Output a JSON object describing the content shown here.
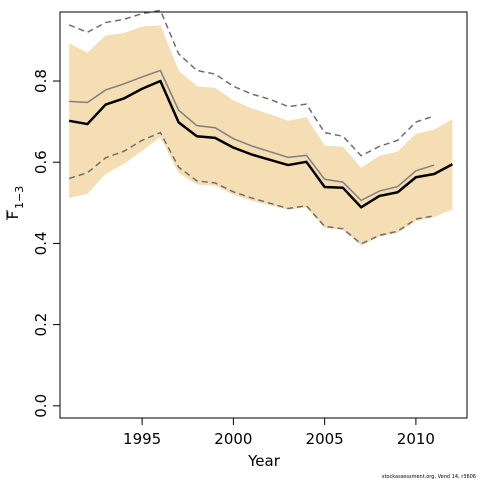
{
  "chart_data": {
    "type": "line",
    "xlabel": "Year",
    "ylabel_main": "F",
    "ylabel_sub": "1−3",
    "xlim": [
      1990.5,
      2012.8
    ],
    "ylim": [
      -0.03,
      0.97
    ],
    "xticks": [
      1995,
      2000,
      2005,
      2010
    ],
    "xtick_labels": [
      "1995",
      "2000",
      "2005",
      "2010"
    ],
    "yticks": [
      0.0,
      0.2,
      0.4,
      0.6,
      0.8
    ],
    "ytick_labels": [
      "0.0",
      "0.2",
      "0.4",
      "0.6",
      "0.8"
    ],
    "grid": false,
    "colors": {
      "band": "#f5deb3",
      "main_line": "#000000",
      "prev_line": "#808080",
      "prev_bounds": "#6e6e6e"
    },
    "series": [
      {
        "role": "band",
        "x": [
          1991,
          1992,
          1993,
          1994,
          1995,
          1996,
          1997,
          1998,
          1999,
          2000,
          2001,
          2002,
          2003,
          2004,
          2005,
          2006,
          2007,
          2008,
          2009,
          2010,
          2011,
          2012
        ],
        "lower": [
          0.512,
          0.522,
          0.571,
          0.596,
          0.628,
          0.662,
          0.573,
          0.545,
          0.542,
          0.52,
          0.505,
          0.494,
          0.483,
          0.489,
          0.438,
          0.434,
          0.395,
          0.417,
          0.426,
          0.455,
          0.465,
          0.484
        ],
        "upper": [
          0.893,
          0.87,
          0.912,
          0.918,
          0.934,
          0.937,
          0.826,
          0.787,
          0.783,
          0.752,
          0.733,
          0.718,
          0.702,
          0.711,
          0.641,
          0.638,
          0.586,
          0.616,
          0.626,
          0.67,
          0.68,
          0.706
        ]
      },
      {
        "role": "main",
        "x": [
          1991,
          1992,
          1993,
          1994,
          1995,
          1996,
          1997,
          1998,
          1999,
          2000,
          2001,
          2002,
          2003,
          2004,
          2005,
          2006,
          2007,
          2008,
          2009,
          2010,
          2011,
          2012
        ],
        "values": [
          0.702,
          0.694,
          0.742,
          0.757,
          0.781,
          0.8,
          0.698,
          0.664,
          0.66,
          0.636,
          0.619,
          0.606,
          0.593,
          0.601,
          0.539,
          0.537,
          0.489,
          0.517,
          0.526,
          0.563,
          0.571,
          0.595
        ]
      },
      {
        "role": "previous",
        "x": [
          1991,
          1992,
          1993,
          1994,
          1995,
          1996,
          1997,
          1998,
          1999,
          2000,
          2001,
          2002,
          2003,
          2004,
          2005,
          2006,
          2007,
          2008,
          2009,
          2010,
          2011
        ],
        "values": [
          0.75,
          0.747,
          0.778,
          0.793,
          0.81,
          0.826,
          0.728,
          0.69,
          0.685,
          0.658,
          0.64,
          0.626,
          0.612,
          0.617,
          0.558,
          0.551,
          0.506,
          0.529,
          0.54,
          0.579,
          0.593
        ]
      },
      {
        "role": "previous_upper",
        "x": [
          1991,
          1992,
          1993,
          1994,
          1995,
          1996,
          1997,
          1998,
          1999,
          2000,
          2001,
          2002,
          2003,
          2004,
          2005,
          2006,
          2007,
          2008,
          2009,
          2010,
          2011
        ],
        "values": [
          0.938,
          0.92,
          0.944,
          0.952,
          0.966,
          0.974,
          0.867,
          0.826,
          0.817,
          0.787,
          0.768,
          0.755,
          0.737,
          0.743,
          0.673,
          0.664,
          0.616,
          0.639,
          0.654,
          0.699,
          0.714
        ]
      },
      {
        "role": "previous_lower",
        "x": [
          1991,
          1992,
          1993,
          1994,
          1995,
          1996,
          1997,
          1998,
          1999,
          2000,
          2001,
          2002,
          2003,
          2004,
          2005,
          2006,
          2007,
          2008,
          2009,
          2010,
          2011
        ],
        "values": [
          0.56,
          0.574,
          0.611,
          0.627,
          0.654,
          0.673,
          0.588,
          0.554,
          0.549,
          0.527,
          0.512,
          0.499,
          0.486,
          0.493,
          0.442,
          0.436,
          0.399,
          0.42,
          0.43,
          0.46,
          0.468
        ]
      }
    ]
  },
  "footer": {
    "text": "stockassessment.org, Vend 14, r3606"
  }
}
